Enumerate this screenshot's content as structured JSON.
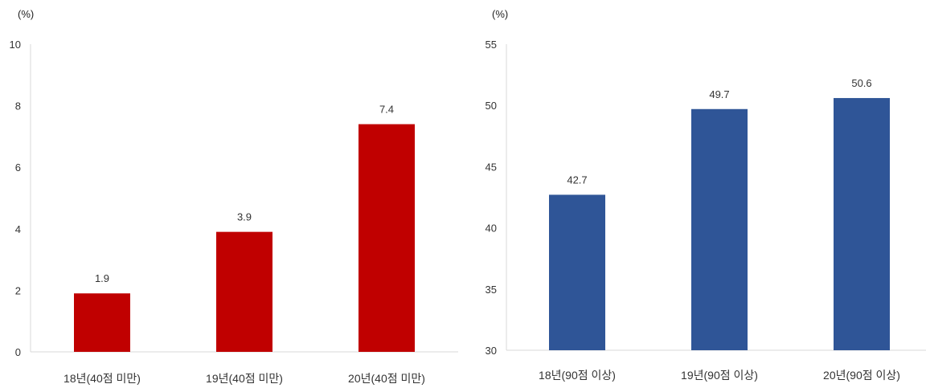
{
  "chart_data": [
    {
      "type": "bar",
      "unit_label": "(%)",
      "categories": [
        "18년(40점 미만)",
        "19년(40점 미만)",
        "20년(40점 미만)"
      ],
      "values": [
        1.9,
        3.9,
        7.4
      ],
      "data_labels": [
        "1.9",
        "3.9",
        "7.4"
      ],
      "ylim": [
        0,
        10
      ],
      "yticks": [
        "0",
        "2",
        "4",
        "6",
        "8",
        "10"
      ],
      "color": "#C00000",
      "grid": false,
      "legend": "none"
    },
    {
      "type": "bar",
      "unit_label": "(%)",
      "categories": [
        "18년(90점 이상)",
        "19년(90점 이상)",
        "20년(90점 이상)"
      ],
      "values": [
        42.7,
        49.7,
        50.6
      ],
      "data_labels": [
        "42.7",
        "49.7",
        "50.6"
      ],
      "ylim": [
        30,
        55
      ],
      "yticks": [
        "30",
        "35",
        "40",
        "45",
        "50",
        "55"
      ],
      "color": "#2F5597",
      "grid": false,
      "legend": "none"
    }
  ]
}
